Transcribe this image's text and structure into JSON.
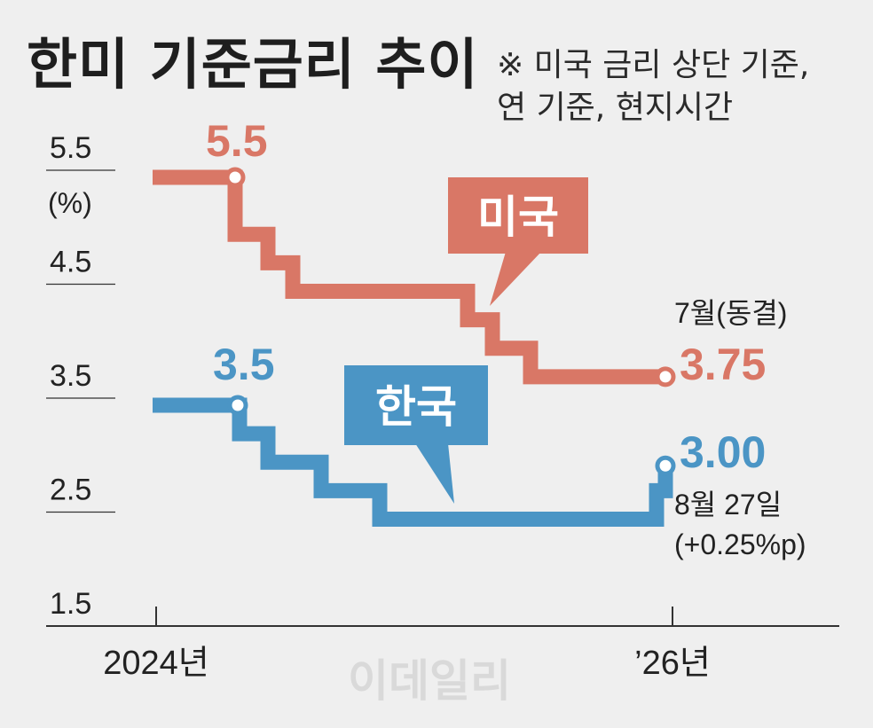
{
  "title": "한미 기준금리 추이",
  "note": [
    "※ 미국 금리 상단 기준,",
    "연 기준, 현지시간"
  ],
  "watermark": "이데일리",
  "colors": {
    "us": "#d97766",
    "kr": "#4b95c5",
    "text": "#1e1e1e",
    "background": "#efefef"
  },
  "chart_data": {
    "type": "line",
    "step": true,
    "unit": "(%)",
    "ylim": [
      1.5,
      5.5
    ],
    "y_ticks": [
      "5.5",
      "4.5",
      "3.5",
      "2.5",
      "1.5"
    ],
    "x_tick_labels": [
      "2024년",
      "’26년"
    ],
    "series": [
      {
        "name": "미국",
        "color": "#d97766",
        "start_label": "5.5",
        "end_label": "3.75",
        "end_note": "7월(동결)",
        "values": [
          5.5,
          5.5,
          5.0,
          4.75,
          4.5,
          4.5,
          4.25,
          4.0,
          3.75,
          3.75
        ]
      },
      {
        "name": "한국",
        "color": "#4b95c5",
        "start_label": "3.5",
        "end_label": "3.00",
        "end_note": [
          "8월 27일",
          "(+0.25%p)"
        ],
        "values": [
          3.5,
          3.5,
          3.25,
          3.0,
          2.75,
          2.5,
          2.5,
          2.75,
          3.0
        ]
      }
    ]
  }
}
